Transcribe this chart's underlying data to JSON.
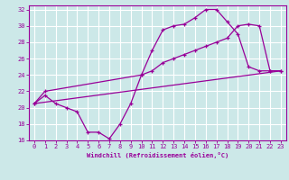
{
  "xlabel": "Windchill (Refroidissement éolien,°C)",
  "bg_color": "#cce8e8",
  "line_color": "#990099",
  "grid_color": "#ffffff",
  "xlim": [
    -0.5,
    23.5
  ],
  "ylim": [
    16,
    32.5
  ],
  "xticks": [
    0,
    1,
    2,
    3,
    4,
    5,
    6,
    7,
    8,
    9,
    10,
    11,
    12,
    13,
    14,
    15,
    16,
    17,
    18,
    19,
    20,
    21,
    22,
    23
  ],
  "yticks": [
    16,
    18,
    20,
    22,
    24,
    26,
    28,
    30,
    32
  ],
  "line1_x": [
    0,
    1,
    2,
    3,
    4,
    5,
    6,
    7,
    8,
    9,
    10,
    11,
    12,
    13,
    14,
    15,
    16,
    17,
    18,
    19,
    20,
    21,
    22,
    23
  ],
  "line1_y": [
    20.5,
    21.5,
    20.5,
    20.0,
    19.5,
    17.0,
    17.0,
    16.2,
    18.0,
    20.5,
    24.0,
    27.0,
    29.5,
    30.0,
    30.2,
    31.0,
    32.0,
    32.0,
    30.5,
    29.0,
    25.0,
    24.5,
    24.5,
    24.5
  ],
  "line2_x": [
    0,
    1,
    10,
    11,
    12,
    13,
    14,
    15,
    16,
    17,
    18,
    19,
    20,
    21,
    22,
    23
  ],
  "line2_y": [
    20.5,
    22.0,
    24.0,
    24.5,
    25.5,
    26.0,
    26.5,
    27.0,
    27.5,
    28.0,
    28.5,
    30.0,
    30.2,
    30.0,
    24.5,
    24.5
  ],
  "line3_x": [
    0,
    23
  ],
  "line3_y": [
    20.5,
    24.5
  ]
}
